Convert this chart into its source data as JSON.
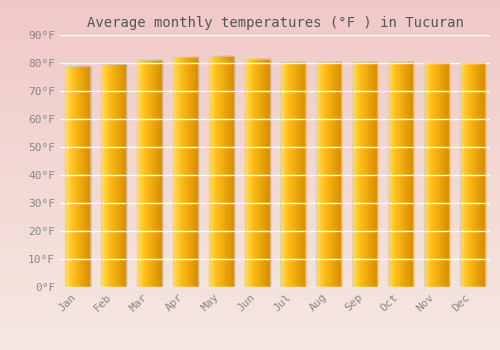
{
  "title": "Average monthly temperatures (°F ) in Tucuran",
  "months": [
    "Jan",
    "Feb",
    "Mar",
    "Apr",
    "May",
    "Jun",
    "Jul",
    "Aug",
    "Sep",
    "Oct",
    "Nov",
    "Dec"
  ],
  "values": [
    79.0,
    79.5,
    81.0,
    82.0,
    82.5,
    81.5,
    80.5,
    80.5,
    80.5,
    80.5,
    80.0,
    80.0
  ],
  "ylim": [
    0,
    90
  ],
  "yticks": [
    0,
    10,
    20,
    30,
    40,
    50,
    60,
    70,
    80,
    90
  ],
  "ytick_labels": [
    "0°F",
    "10°F",
    "20°F",
    "30°F",
    "40°F",
    "50°F",
    "60°F",
    "70°F",
    "80°F",
    "90°F"
  ],
  "bg_top": "#f0c8c8",
  "bg_bottom": "#f5e8e0",
  "bar_color_main": "#FFB300",
  "bar_color_light": "#FFD54F",
  "bar_color_dark": "#E65100",
  "grid_color": "#ffffff",
  "title_fontsize": 10,
  "tick_fontsize": 8,
  "font_family": "monospace",
  "title_color": "#555555",
  "tick_color": "#888888"
}
